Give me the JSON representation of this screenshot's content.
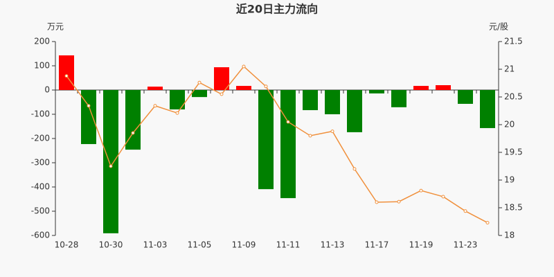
{
  "chart_data": {
    "type": "bar-line",
    "title": "近20日主力流向",
    "y_label": "万元",
    "y2_label": "元/股",
    "categories": [
      "10-28",
      null,
      "10-30",
      null,
      "11-03",
      null,
      "11-05",
      null,
      "11-09",
      null,
      "11-11",
      null,
      "11-13",
      null,
      "11-17",
      null,
      "11-19",
      null,
      "11-23",
      null
    ],
    "series": [
      {
        "mark": "bar",
        "positive_color": "#ff0000",
        "negative_color": "#008000",
        "values": [
          143,
          -223,
          -591,
          -246,
          14,
          -80,
          -29,
          94,
          17,
          -409,
          -446,
          -83,
          -100,
          -174,
          -14,
          -71,
          17,
          20,
          -57,
          -157
        ]
      },
      {
        "mark": "line",
        "axis": "y2",
        "color": "#f0903c",
        "values": [
          20.88,
          20.34,
          19.25,
          19.85,
          20.34,
          20.21,
          20.76,
          20.55,
          21.05,
          20.69,
          20.05,
          19.8,
          19.88,
          19.2,
          18.6,
          18.61,
          18.81,
          18.7,
          18.44,
          18.23
        ]
      }
    ],
    "ylim": [
      -600,
      200
    ],
    "yticks": [
      -600,
      -500,
      -400,
      -300,
      -200,
      -100,
      0,
      100,
      200
    ],
    "y2lim": [
      18,
      21.5
    ],
    "y2ticks": [
      18,
      18.5,
      19,
      19.5,
      20,
      20.5,
      21,
      21.5
    ]
  }
}
